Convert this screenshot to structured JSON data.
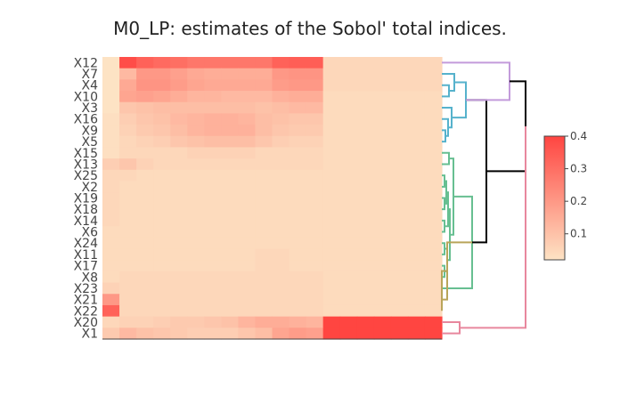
{
  "chart_data": {
    "type": "heatmap",
    "title": "M0_LP: estimates of the Sobol' total indices.",
    "rows": [
      "X12",
      "X7",
      "X4",
      "X10",
      "X3",
      "X16",
      "X9",
      "X5",
      "X15",
      "X13",
      "X25",
      "X2",
      "X19",
      "X18",
      "X14",
      "X6",
      "X24",
      "X11",
      "X17",
      "X8",
      "X23",
      "X21",
      "X22",
      "X20",
      "X1"
    ],
    "n_columns": 20,
    "values": [
      [
        0.02,
        0.38,
        0.33,
        0.31,
        0.3,
        0.28,
        0.28,
        0.28,
        0.28,
        0.28,
        0.33,
        0.34,
        0.34,
        0.05,
        0.05,
        0.05,
        0.05,
        0.05,
        0.05,
        0.05
      ],
      [
        0.02,
        0.12,
        0.2,
        0.2,
        0.18,
        0.16,
        0.15,
        0.15,
        0.15,
        0.15,
        0.2,
        0.21,
        0.21,
        0.05,
        0.05,
        0.05,
        0.05,
        0.05,
        0.05,
        0.05
      ],
      [
        0.02,
        0.16,
        0.21,
        0.21,
        0.19,
        0.17,
        0.16,
        0.16,
        0.16,
        0.16,
        0.19,
        0.2,
        0.2,
        0.05,
        0.05,
        0.05,
        0.05,
        0.05,
        0.05,
        0.05
      ],
      [
        0.02,
        0.17,
        0.18,
        0.17,
        0.15,
        0.13,
        0.13,
        0.12,
        0.12,
        0.12,
        0.14,
        0.15,
        0.15,
        0.04,
        0.04,
        0.04,
        0.04,
        0.04,
        0.04,
        0.04
      ],
      [
        0.02,
        0.09,
        0.1,
        0.11,
        0.11,
        0.11,
        0.11,
        0.11,
        0.11,
        0.1,
        0.11,
        0.12,
        0.12,
        0.04,
        0.04,
        0.04,
        0.04,
        0.04,
        0.04,
        0.04
      ],
      [
        0.03,
        0.07,
        0.09,
        0.1,
        0.12,
        0.13,
        0.14,
        0.14,
        0.13,
        0.11,
        0.1,
        0.09,
        0.09,
        0.04,
        0.04,
        0.04,
        0.04,
        0.04,
        0.04,
        0.04
      ],
      [
        0.03,
        0.06,
        0.08,
        0.09,
        0.11,
        0.13,
        0.14,
        0.14,
        0.14,
        0.11,
        0.09,
        0.08,
        0.08,
        0.04,
        0.04,
        0.04,
        0.04,
        0.04,
        0.04,
        0.04
      ],
      [
        0.03,
        0.05,
        0.06,
        0.07,
        0.09,
        0.1,
        0.11,
        0.11,
        0.11,
        0.09,
        0.07,
        0.06,
        0.06,
        0.04,
        0.04,
        0.04,
        0.04,
        0.04,
        0.04,
        0.04
      ],
      [
        0.03,
        0.05,
        0.05,
        0.05,
        0.05,
        0.06,
        0.06,
        0.06,
        0.06,
        0.05,
        0.05,
        0.05,
        0.05,
        0.04,
        0.04,
        0.04,
        0.04,
        0.04,
        0.04,
        0.04
      ],
      [
        0.07,
        0.09,
        0.06,
        0.05,
        0.05,
        0.05,
        0.05,
        0.05,
        0.05,
        0.05,
        0.05,
        0.05,
        0.05,
        0.04,
        0.04,
        0.04,
        0.04,
        0.04,
        0.04,
        0.04
      ],
      [
        0.05,
        0.05,
        0.04,
        0.04,
        0.04,
        0.04,
        0.04,
        0.04,
        0.04,
        0.04,
        0.04,
        0.04,
        0.04,
        0.04,
        0.04,
        0.04,
        0.04,
        0.04,
        0.04,
        0.04
      ],
      [
        0.05,
        0.04,
        0.04,
        0.04,
        0.04,
        0.04,
        0.04,
        0.04,
        0.04,
        0.04,
        0.04,
        0.04,
        0.04,
        0.04,
        0.04,
        0.04,
        0.04,
        0.04,
        0.04,
        0.04
      ],
      [
        0.05,
        0.04,
        0.04,
        0.04,
        0.04,
        0.04,
        0.04,
        0.04,
        0.04,
        0.04,
        0.04,
        0.04,
        0.04,
        0.04,
        0.04,
        0.04,
        0.04,
        0.04,
        0.04,
        0.04
      ],
      [
        0.05,
        0.04,
        0.04,
        0.04,
        0.04,
        0.04,
        0.04,
        0.04,
        0.04,
        0.04,
        0.04,
        0.04,
        0.04,
        0.04,
        0.04,
        0.04,
        0.04,
        0.04,
        0.04,
        0.04
      ],
      [
        0.05,
        0.04,
        0.04,
        0.04,
        0.04,
        0.04,
        0.04,
        0.04,
        0.04,
        0.04,
        0.04,
        0.04,
        0.04,
        0.04,
        0.04,
        0.04,
        0.04,
        0.04,
        0.04,
        0.04
      ],
      [
        0.04,
        0.04,
        0.04,
        0.04,
        0.04,
        0.04,
        0.04,
        0.04,
        0.04,
        0.04,
        0.04,
        0.04,
        0.04,
        0.04,
        0.04,
        0.04,
        0.04,
        0.04,
        0.04,
        0.04
      ],
      [
        0.04,
        0.04,
        0.04,
        0.04,
        0.04,
        0.04,
        0.04,
        0.04,
        0.04,
        0.04,
        0.04,
        0.04,
        0.04,
        0.04,
        0.04,
        0.04,
        0.04,
        0.04,
        0.04,
        0.04
      ],
      [
        0.04,
        0.04,
        0.04,
        0.04,
        0.04,
        0.04,
        0.04,
        0.04,
        0.04,
        0.05,
        0.05,
        0.04,
        0.04,
        0.04,
        0.04,
        0.04,
        0.04,
        0.04,
        0.04,
        0.04
      ],
      [
        0.04,
        0.04,
        0.04,
        0.04,
        0.04,
        0.04,
        0.04,
        0.04,
        0.04,
        0.05,
        0.05,
        0.04,
        0.04,
        0.04,
        0.04,
        0.04,
        0.04,
        0.04,
        0.04,
        0.04
      ],
      [
        0.04,
        0.05,
        0.05,
        0.05,
        0.05,
        0.05,
        0.05,
        0.05,
        0.05,
        0.05,
        0.05,
        0.05,
        0.05,
        0.04,
        0.04,
        0.04,
        0.04,
        0.04,
        0.04,
        0.04
      ],
      [
        0.06,
        0.05,
        0.05,
        0.05,
        0.05,
        0.05,
        0.05,
        0.05,
        0.05,
        0.05,
        0.05,
        0.05,
        0.05,
        0.04,
        0.04,
        0.04,
        0.04,
        0.04,
        0.04,
        0.04
      ],
      [
        0.2,
        0.05,
        0.05,
        0.05,
        0.05,
        0.05,
        0.05,
        0.05,
        0.05,
        0.05,
        0.05,
        0.05,
        0.05,
        0.04,
        0.04,
        0.04,
        0.04,
        0.04,
        0.04,
        0.04
      ],
      [
        0.33,
        0.05,
        0.05,
        0.05,
        0.05,
        0.05,
        0.05,
        0.05,
        0.05,
        0.05,
        0.05,
        0.05,
        0.05,
        0.04,
        0.04,
        0.04,
        0.04,
        0.04,
        0.04,
        0.04
      ],
      [
        0.05,
        0.06,
        0.06,
        0.07,
        0.08,
        0.08,
        0.09,
        0.1,
        0.13,
        0.15,
        0.15,
        0.14,
        0.13,
        0.4,
        0.4,
        0.4,
        0.4,
        0.4,
        0.4,
        0.4
      ],
      [
        0.08,
        0.12,
        0.1,
        0.09,
        0.08,
        0.07,
        0.07,
        0.07,
        0.09,
        0.11,
        0.17,
        0.19,
        0.18,
        0.4,
        0.4,
        0.4,
        0.4,
        0.4,
        0.4,
        0.4
      ]
    ],
    "colorscale": {
      "min": 0.02,
      "max": 0.4,
      "low_color": "#fde3c4",
      "high_color": "#ff4541"
    },
    "colorbar": {
      "ticks": [
        "0.1",
        "0.2",
        "0.3",
        "0.4"
      ],
      "tick_values": [
        0.1,
        0.2,
        0.3,
        0.4
      ]
    },
    "dendrogram_colors": {
      "purple": "#c39bdb",
      "blue": "#56b2cc",
      "green": "#67bf91",
      "olive": "#b9a55a",
      "pink": "#e8879d",
      "black": "#000000"
    }
  }
}
